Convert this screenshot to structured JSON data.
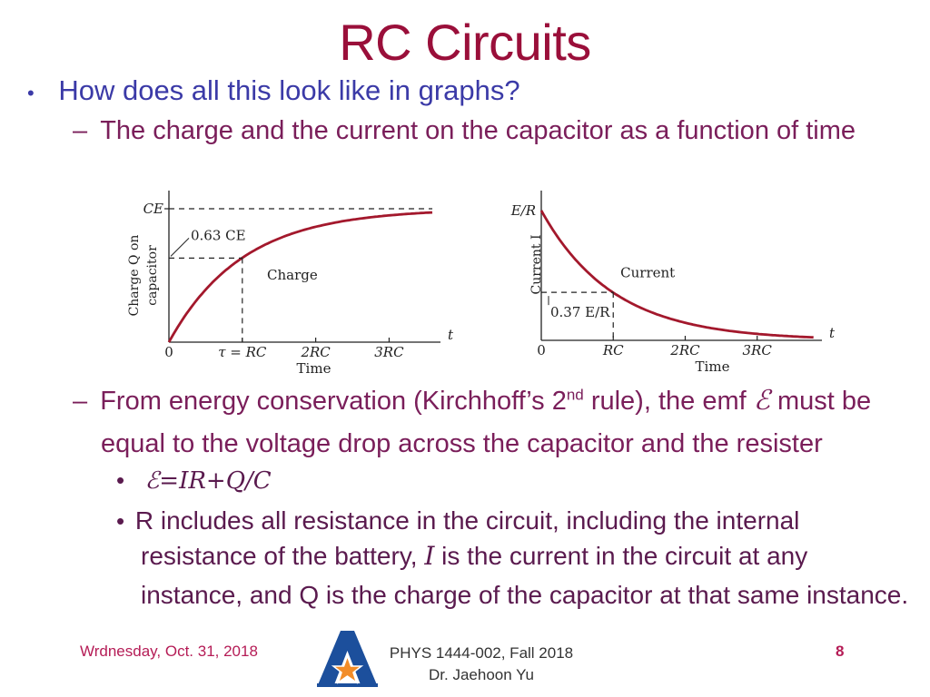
{
  "title": "RC Circuits",
  "bullet1": "How does all this look like in graphs?",
  "sub1": "The charge and the current on the capacitor as a function of time",
  "sub2": {
    "a": "From energy conservation (Kirchhoff’s 2",
    "sup": "nd",
    "b": " rule), the emf ",
    "emf_symbol": "ℰ",
    "c": " must be",
    "line2": "equal to the voltage drop across the capacitor and the resister"
  },
  "equation": "ℰ=IR+Q/C",
  "bullet3": {
    "line1": "R includes all resistance in the circuit, including the internal",
    "line2a": "resistance of the battery, ",
    "line2i": "I",
    "line2b": " is the current in the circuit at any",
    "line3": "instance, and Q is the charge of the capacitor at that same instance."
  },
  "footer": {
    "date": "Wrdnesday, Oct. 31, 2018",
    "course": "PHYS 1444-002, Fall 2018",
    "instructor": "Dr. Jaehoon Yu",
    "page": "8"
  },
  "colors": {
    "title": "#9a0f3a",
    "bullet": "#3b3aa7",
    "text": "#7a1e5a",
    "curve": "#a3182c"
  },
  "icons": {
    "logo": "uta-star-logo"
  },
  "chart_data": [
    {
      "type": "line",
      "series": [
        {
          "name": "Charge",
          "function": "Q = CE(1 - e^(-t/RC))"
        }
      ],
      "x_ticks": [
        "0",
        "τ = RC",
        "2RC",
        "3RC"
      ],
      "x_tick_values": [
        0,
        1,
        2,
        3
      ],
      "xlim": [
        0,
        3.7
      ],
      "x_axis_symbol": "t",
      "xlabel": "Time",
      "ylabel_line1": "Charge Q on",
      "ylabel_line2": "capacitor",
      "y_ticks": [
        "CE"
      ],
      "ylim": [
        0,
        1
      ],
      "annotation": "0.63 CE",
      "annotation_value": 0.63,
      "label": "Charge"
    },
    {
      "type": "line",
      "series": [
        {
          "name": "Current",
          "function": "I = (E/R) e^(-t/RC)"
        }
      ],
      "x_ticks": [
        "0",
        "RC",
        "2RC",
        "3RC"
      ],
      "x_tick_values": [
        0,
        1,
        2,
        3
      ],
      "xlim": [
        0,
        3.9
      ],
      "x_axis_symbol": "t",
      "xlabel": "Time",
      "ylabel": "Current I",
      "y_ticks": [
        "E/R"
      ],
      "ylim": [
        0,
        1
      ],
      "annotation": "0.37 E/R",
      "annotation_value": 0.37,
      "label": "Current"
    }
  ]
}
